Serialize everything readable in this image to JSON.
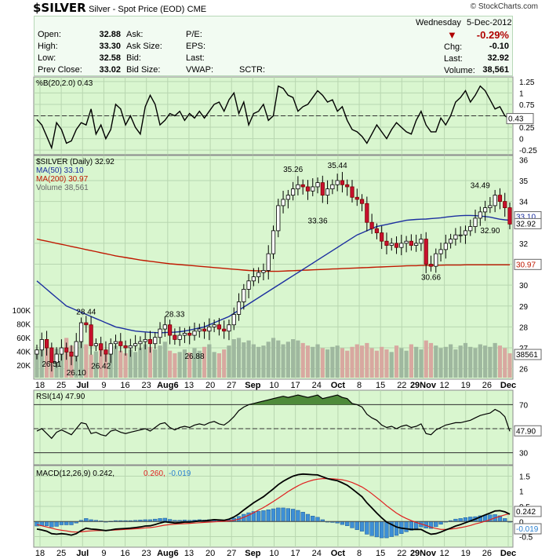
{
  "header": {
    "symbol": "$SILVER",
    "name": "Silver - Spot Price (EOD)",
    "exchange": "CME",
    "source": "© StockCharts.com",
    "day": "Wednesday",
    "date": "5-Dec-2012"
  },
  "quote": {
    "open_label": "Open:",
    "open": "32.88",
    "high_label": "High:",
    "high": "33.30",
    "low_label": "Low:",
    "low": "32.58",
    "prev_label": "Prev Close:",
    "prev": "33.02",
    "ask_label": "Ask:",
    "asksize_label": "Ask Size:",
    "bid_label": "Bid:",
    "bidsize_label": "Bid Size:",
    "pe_label": "P/E:",
    "eps_label": "EPS:",
    "last_label2": "Last:",
    "vwap_label": "VWAP:",
    "sctr_label": "SCTR:",
    "pct_change": "-0.29%",
    "chg_label": "Chg:",
    "chg": "-0.10",
    "last_label": "Last:",
    "last": "32.92",
    "volume_label": "Volume:",
    "volume": "38,561",
    "down_color": "#b00000"
  },
  "chart_data": [
    {
      "type": "line",
      "title": "%B(20,2.0) 0.43",
      "yticks": [
        -0.25,
        0.0,
        0.25,
        0.5,
        0.75,
        1.0,
        1.25
      ],
      "ylim": [
        -0.35,
        1.35
      ],
      "last_value_label": "0.43",
      "series": [
        {
          "name": "%B(20,2.0)",
          "color": "#000000",
          "values": [
            0.42,
            0.3,
            0.05,
            -0.2,
            0.35,
            0.2,
            -0.1,
            -0.05,
            0.2,
            0.35,
            0.3,
            0.65,
            0.1,
            0.3,
            0.0,
            0.2,
            0.75,
            0.65,
            0.3,
            0.5,
            0.25,
            0.1,
            0.7,
            0.95,
            0.75,
            0.3,
            0.4,
            0.55,
            0.5,
            0.6,
            0.4,
            0.55,
            0.45,
            0.6,
            0.45,
            0.6,
            0.75,
            0.8,
            0.6,
            0.85,
            1.0,
            0.55,
            0.8,
            0.3,
            0.55,
            0.6,
            0.75,
            0.4,
            0.5,
            1.15,
            1.1,
            0.95,
            0.9,
            0.6,
            0.7,
            0.75,
            0.9,
            1.05,
            0.95,
            0.8,
            0.85,
            0.6,
            0.7,
            0.4,
            0.2,
            0.15,
            0.05,
            -0.1,
            0.1,
            0.3,
            0.15,
            0.0,
            0.2,
            0.35,
            0.25,
            0.15,
            0.1,
            0.4,
            0.6,
            0.3,
            0.15,
            0.15,
            0.45,
            0.3,
            0.5,
            0.8,
            0.9,
            1.05,
            0.8,
            0.95,
            1.15,
            1.05,
            0.85,
            0.65,
            0.7,
            0.5,
            0.43
          ]
        }
      ]
    },
    {
      "type": "candlestick",
      "title": "$SILVER (Daily) 32.92",
      "ylim": [
        25.5,
        36.2
      ],
      "yticks": [
        26,
        27,
        28,
        29,
        30,
        31,
        32,
        33,
        34,
        35,
        36
      ],
      "x_labels": [
        "18",
        "25",
        "Jul",
        "9",
        "16",
        "23",
        "Aug6",
        "13",
        "20",
        "27",
        "Sep",
        "10",
        "17",
        "24",
        "Oct",
        "8",
        "15",
        "22",
        "29Nov",
        "12",
        "19",
        "26",
        "Dec"
      ],
      "annotations": [
        "26.51",
        "26.10",
        "26.42",
        "28.44",
        "28.33",
        "26.88",
        "35.26",
        "35.44",
        "33.36",
        "30.66",
        "34.49",
        "32.90"
      ],
      "last_value_label": "32.92",
      "ma50_label": "33.10",
      "ma200_label": "30.97",
      "volume_label": "38561",
      "volume_axis": [
        "100K",
        "80K",
        "60K",
        "40K",
        "20K"
      ],
      "legend": [
        {
          "name": "$SILVER (Daily) 32.92",
          "color": "#000000"
        },
        {
          "name": "MA(50) 33.10",
          "color": "#1c2fa0"
        },
        {
          "name": "MA(200) 30.97",
          "color": "#c01800"
        },
        {
          "name": "Volume 38,561",
          "color": "#666666"
        }
      ],
      "close": [
        26.9,
        27.4,
        27.0,
        26.3,
        26.7,
        27.0,
        26.8,
        26.6,
        27.3,
        28.2,
        28.1,
        27.1,
        27.2,
        26.9,
        26.7,
        27.2,
        27.3,
        27.1,
        27.0,
        27.1,
        27.2,
        27.3,
        27.4,
        27.2,
        27.5,
        27.9,
        28.1,
        27.6,
        27.4,
        27.6,
        27.7,
        27.6,
        27.8,
        27.9,
        27.8,
        28.0,
        28.1,
        27.9,
        27.8,
        28.1,
        28.6,
        29.2,
        29.8,
        30.2,
        30.4,
        30.6,
        30.7,
        31.5,
        32.6,
        33.8,
        34.1,
        34.3,
        34.6,
        34.8,
        34.7,
        34.5,
        34.7,
        34.9,
        34.3,
        34.6,
        34.8,
        35.0,
        34.8,
        34.7,
        34.2,
        34.1,
        33.9,
        33.0,
        32.7,
        32.5,
        32.1,
        31.9,
        32.0,
        31.8,
        32.0,
        32.1,
        31.9,
        32.0,
        32.2,
        31.0,
        30.9,
        31.5,
        31.7,
        32.0,
        32.2,
        32.4,
        32.4,
        32.6,
        32.8,
        33.2,
        33.5,
        33.7,
        33.8,
        34.3,
        34.0,
        33.7,
        32.92
      ],
      "ma50": [
        30.2,
        30.0,
        29.8,
        29.6,
        29.4,
        29.2,
        29.0,
        28.9,
        28.8,
        28.7,
        28.6,
        28.5,
        28.4,
        28.3,
        28.2,
        28.1,
        28.0,
        27.95,
        27.9,
        27.85,
        27.8,
        27.78,
        27.76,
        27.74,
        27.73,
        27.72,
        27.73,
        27.74,
        27.75,
        27.77,
        27.8,
        27.85,
        27.9,
        27.95,
        28.0,
        28.1,
        28.2,
        28.3,
        28.4,
        28.5,
        28.65,
        28.8,
        28.95,
        29.1,
        29.25,
        29.4,
        29.55,
        29.7,
        29.85,
        30.0,
        30.15,
        30.3,
        30.45,
        30.6,
        30.75,
        30.9,
        31.05,
        31.2,
        31.35,
        31.5,
        31.65,
        31.8,
        31.95,
        32.1,
        32.25,
        32.4,
        32.5,
        32.6,
        32.7,
        32.8,
        32.85,
        32.9,
        32.95,
        33.0,
        33.05,
        33.1,
        33.12,
        33.14,
        33.15,
        33.16,
        33.18,
        33.2,
        33.22,
        33.25,
        33.28,
        33.3,
        33.32,
        33.33,
        33.33,
        33.32,
        33.3,
        33.28,
        33.25,
        33.2,
        33.15,
        33.12,
        33.1
      ],
      "ma200": [
        32.2,
        32.15,
        32.1,
        32.05,
        32.0,
        31.95,
        31.9,
        31.85,
        31.8,
        31.75,
        31.7,
        31.65,
        31.6,
        31.55,
        31.5,
        31.45,
        31.4,
        31.36,
        31.32,
        31.28,
        31.24,
        31.2,
        31.17,
        31.14,
        31.11,
        31.08,
        31.05,
        31.02,
        31.0,
        30.98,
        30.96,
        30.94,
        30.92,
        30.9,
        30.88,
        30.86,
        30.84,
        30.82,
        30.8,
        30.78,
        30.76,
        30.74,
        30.72,
        30.7,
        30.69,
        30.68,
        30.67,
        30.66,
        30.66,
        30.66,
        30.67,
        30.68,
        30.69,
        30.7,
        30.71,
        30.72,
        30.73,
        30.74,
        30.75,
        30.76,
        30.77,
        30.78,
        30.79,
        30.8,
        30.81,
        30.82,
        30.83,
        30.84,
        30.85,
        30.86,
        30.87,
        30.88,
        30.89,
        30.9,
        30.91,
        30.92,
        30.93,
        30.93,
        30.94,
        30.94,
        30.95,
        30.95,
        30.95,
        30.96,
        30.96,
        30.96,
        30.96,
        30.97,
        30.97,
        30.97,
        30.97,
        30.97,
        30.97,
        30.97,
        30.97,
        30.97,
        30.97
      ],
      "volume": [
        42,
        48,
        55,
        40,
        45,
        38,
        62,
        50,
        44,
        58,
        52,
        36,
        41,
        47,
        39,
        45,
        50,
        42,
        38,
        44,
        40,
        46,
        52,
        48,
        44,
        50,
        56,
        42,
        38,
        40,
        44,
        39,
        46,
        42,
        48,
        52,
        40,
        38,
        44,
        50,
        60,
        62,
        55,
        58,
        52,
        48,
        50,
        56,
        62,
        58,
        52,
        56,
        60,
        58,
        54,
        50,
        48,
        52,
        46,
        44,
        48,
        50,
        46,
        42,
        48,
        52,
        50,
        54,
        46,
        42,
        48,
        44,
        40,
        50,
        46,
        42,
        52,
        48,
        44,
        58,
        54,
        50,
        46,
        48,
        52,
        44,
        50,
        54,
        48,
        46,
        52,
        50,
        48,
        54,
        50,
        46,
        38
      ]
    },
    {
      "type": "line",
      "title": "RSI(14) 47.90",
      "yticks": [
        30,
        50,
        70
      ],
      "ylim": [
        20,
        82
      ],
      "last_value_label": "47.90",
      "series": [
        {
          "name": "RSI(14)",
          "color": "#000000",
          "values": [
            48,
            50,
            46,
            42,
            47,
            49,
            47,
            45,
            50,
            55,
            54,
            46,
            47,
            45,
            44,
            48,
            49,
            47,
            46,
            47,
            48,
            49,
            50,
            48,
            51,
            54,
            55,
            51,
            49,
            51,
            52,
            51,
            53,
            54,
            53,
            55,
            56,
            54,
            53,
            56,
            60,
            65,
            68,
            70,
            71,
            72,
            73,
            74,
            75,
            76,
            77,
            76,
            77,
            78,
            77,
            76,
            77,
            78,
            75,
            76,
            77,
            78,
            76,
            75,
            71,
            70,
            68,
            62,
            59,
            57,
            53,
            51,
            52,
            50,
            52,
            53,
            51,
            52,
            54,
            46,
            45,
            49,
            51,
            53,
            54,
            55,
            55,
            56,
            57,
            59,
            61,
            62,
            63,
            66,
            64,
            60,
            47.9
          ]
        }
      ]
    },
    {
      "type": "line",
      "title": "MACD(12,26,9) 0.242, 0.260, -0.019",
      "yticks": [
        -0.5,
        0.0,
        0.5,
        1.0,
        1.5
      ],
      "ylim": [
        -0.85,
        1.85
      ],
      "macd_label": "0.242",
      "signal_label": "0.260",
      "hist_label": "-0.019",
      "series": [
        {
          "name": "MACD(12,26,9)",
          "color": "#000000",
          "values": [
            -0.25,
            -0.28,
            -0.32,
            -0.4,
            -0.42,
            -0.4,
            -0.42,
            -0.45,
            -0.4,
            -0.3,
            -0.22,
            -0.25,
            -0.26,
            -0.28,
            -0.3,
            -0.28,
            -0.25,
            -0.24,
            -0.23,
            -0.22,
            -0.2,
            -0.18,
            -0.15,
            -0.14,
            -0.1,
            -0.05,
            -0.01,
            -0.03,
            -0.05,
            -0.04,
            -0.02,
            -0.02,
            0.0,
            0.02,
            0.02,
            0.04,
            0.06,
            0.05,
            0.04,
            0.08,
            0.15,
            0.25,
            0.38,
            0.5,
            0.62,
            0.72,
            0.82,
            0.95,
            1.08,
            1.22,
            1.33,
            1.42,
            1.5,
            1.55,
            1.57,
            1.56,
            1.55,
            1.54,
            1.48,
            1.42,
            1.38,
            1.35,
            1.28,
            1.2,
            1.08,
            0.95,
            0.82,
            0.62,
            0.45,
            0.28,
            0.12,
            -0.02,
            -0.1,
            -0.18,
            -0.22,
            -0.24,
            -0.26,
            -0.26,
            -0.26,
            -0.35,
            -0.42,
            -0.4,
            -0.35,
            -0.28,
            -0.22,
            -0.15,
            -0.1,
            -0.04,
            0.02,
            0.08,
            0.15,
            0.22,
            0.28,
            0.35,
            0.36,
            0.32,
            0.242
          ]
        },
        {
          "name": "Signal",
          "color": "#e02020",
          "values": [
            -0.1,
            -0.14,
            -0.18,
            -0.22,
            -0.26,
            -0.29,
            -0.31,
            -0.34,
            -0.35,
            -0.34,
            -0.32,
            -0.31,
            -0.3,
            -0.3,
            -0.3,
            -0.29,
            -0.28,
            -0.27,
            -0.26,
            -0.25,
            -0.24,
            -0.23,
            -0.21,
            -0.2,
            -0.18,
            -0.15,
            -0.12,
            -0.1,
            -0.09,
            -0.08,
            -0.07,
            -0.06,
            -0.05,
            -0.04,
            -0.03,
            -0.02,
            -0.01,
            0.0,
            0.01,
            0.02,
            0.04,
            0.08,
            0.14,
            0.21,
            0.29,
            0.38,
            0.46,
            0.56,
            0.66,
            0.77,
            0.88,
            0.99,
            1.09,
            1.18,
            1.26,
            1.32,
            1.37,
            1.4,
            1.42,
            1.42,
            1.41,
            1.4,
            1.38,
            1.34,
            1.29,
            1.22,
            1.14,
            1.04,
            0.92,
            0.79,
            0.66,
            0.52,
            0.4,
            0.28,
            0.18,
            0.1,
            0.03,
            -0.03,
            -0.08,
            -0.13,
            -0.19,
            -0.23,
            -0.26,
            -0.26,
            -0.25,
            -0.23,
            -0.2,
            -0.17,
            -0.13,
            -0.08,
            -0.04,
            0.01,
            0.06,
            0.12,
            0.17,
            0.22,
            0.26
          ]
        },
        {
          "name": "Histogram",
          "color": "#2a80d0",
          "values": []
        }
      ]
    }
  ]
}
